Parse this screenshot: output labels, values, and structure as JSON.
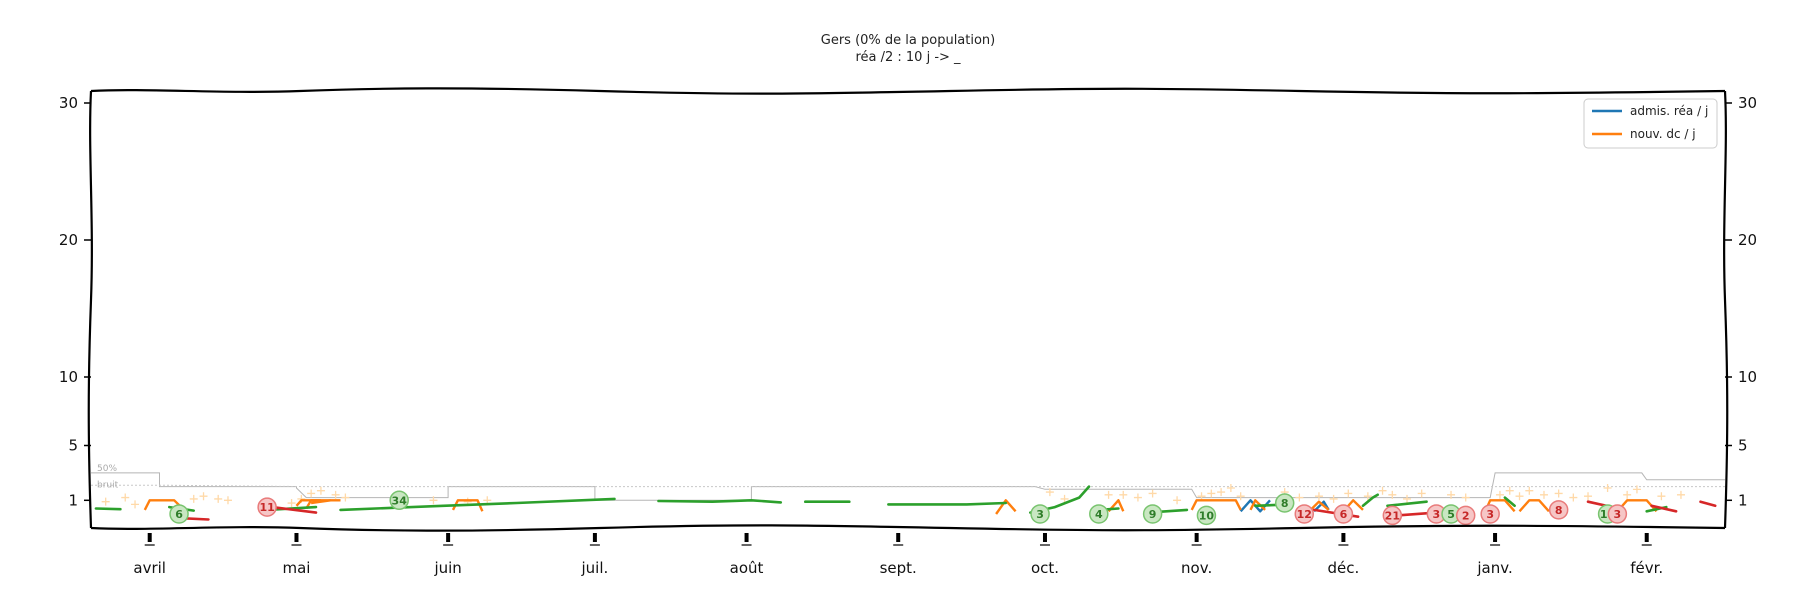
{
  "chart_data": {
    "type": "line",
    "title": "Gers (0% de la population)",
    "subtitle": "réa /2 : 10 j -> _",
    "yticks": [
      1,
      5,
      10,
      20,
      30
    ],
    "ylim": [
      0,
      32
    ],
    "x_range": [
      "2020-03-20",
      "2021-02-17"
    ],
    "months": [
      {
        "label": "avril",
        "date": "2020-04-01"
      },
      {
        "label": "mai",
        "date": "2020-05-01"
      },
      {
        "label": "juin",
        "date": "2020-06-01"
      },
      {
        "label": "juil.",
        "date": "2020-07-01"
      },
      {
        "label": "août",
        "date": "2020-08-01"
      },
      {
        "label": "sept.",
        "date": "2020-09-01"
      },
      {
        "label": "oct.",
        "date": "2020-10-01"
      },
      {
        "label": "nov.",
        "date": "2020-11-01"
      },
      {
        "label": "déc.",
        "date": "2020-12-01"
      },
      {
        "label": "janv.",
        "date": "2021-01-01"
      },
      {
        "label": "févr.",
        "date": "2021-02-01"
      }
    ],
    "legend": {
      "position": "top-right",
      "entries": [
        {
          "label": "admis. réa / j",
          "color": "#1f77b4"
        },
        {
          "label": "nouv. dc / j",
          "color": "#ff7f0e"
        }
      ]
    },
    "band_labels": [
      "50%",
      "bruit"
    ],
    "series": [
      {
        "name": "admis. réa / j",
        "color": "#1f77b4",
        "segments": [
          [
            [
              "2020-11-10",
              0.2
            ],
            [
              "2020-11-12",
              1
            ],
            [
              "2020-11-14",
              0.2
            ],
            [
              "2020-11-16",
              1
            ]
          ],
          [
            [
              "2020-11-25",
              0.2
            ],
            [
              "2020-11-27",
              0.9
            ],
            [
              "2020-11-28",
              0.3
            ]
          ]
        ]
      },
      {
        "name": "nouv. dc / j",
        "color": "#ff7f0e",
        "segments": [
          [
            [
              "2020-03-31",
              0.3
            ],
            [
              "2020-04-01",
              1
            ],
            [
              "2020-04-06",
              1
            ],
            [
              "2020-04-08",
              0.3
            ]
          ],
          [
            [
              "2020-05-01",
              0.6
            ],
            [
              "2020-05-02",
              1
            ],
            [
              "2020-05-06",
              1
            ]
          ],
          [
            [
              "2020-05-04",
              0.8
            ],
            [
              "2020-05-08",
              1
            ]
          ],
          [
            [
              "2020-05-03",
              0.4
            ],
            [
              "2020-05-04",
              1
            ],
            [
              "2020-05-10",
              1
            ]
          ],
          [
            [
              "2020-06-02",
              0.3
            ],
            [
              "2020-06-03",
              1
            ],
            [
              "2020-06-07",
              1
            ],
            [
              "2020-06-08",
              0.2
            ]
          ],
          [
            [
              "2020-09-21",
              0
            ],
            [
              "2020-09-23",
              1
            ],
            [
              "2020-09-25",
              0.2
            ]
          ],
          [
            [
              "2020-10-14",
              0.2
            ],
            [
              "2020-10-16",
              1
            ],
            [
              "2020-10-17",
              0.2
            ]
          ],
          [
            [
              "2020-10-31",
              0.3
            ],
            [
              "2020-11-01",
              1
            ],
            [
              "2020-11-09",
              1
            ],
            [
              "2020-11-10",
              0.3
            ]
          ],
          [
            [
              "2020-11-12",
              0.3
            ],
            [
              "2020-11-13",
              1
            ],
            [
              "2020-11-15",
              0.3
            ]
          ],
          [
            [
              "2020-11-24",
              0.2
            ],
            [
              "2020-11-26",
              0.9
            ],
            [
              "2020-11-28",
              0.3
            ]
          ],
          [
            [
              "2020-12-01",
              0.2
            ],
            [
              "2020-12-03",
              1
            ],
            [
              "2020-12-05",
              0.3
            ]
          ],
          [
            [
              "2020-12-30",
              0.2
            ],
            [
              "2020-12-31",
              1
            ],
            [
              "2021-01-03",
              1
            ],
            [
              "2021-01-05",
              0.2
            ]
          ],
          [
            [
              "2021-01-06",
              0.2
            ],
            [
              "2021-01-08",
              1
            ],
            [
              "2021-01-10",
              1
            ],
            [
              "2021-01-12",
              0.2
            ]
          ],
          [
            [
              "2021-01-26",
              0.2
            ],
            [
              "2021-01-28",
              1
            ],
            [
              "2021-02-01",
              1
            ],
            [
              "2021-02-03",
              0.2
            ]
          ]
        ]
      }
    ],
    "trend_segments": [
      {
        "color": "#2ca02c",
        "points": [
          [
            "2020-03-21",
            0.4
          ],
          [
            "2020-03-26",
            0.35
          ]
        ]
      },
      {
        "color": "#2ca02c",
        "points": [
          [
            "2020-04-05",
            0.5
          ],
          [
            "2020-04-10",
            0.25
          ]
        ]
      },
      {
        "color": "#2ca02c",
        "points": [
          [
            "2020-04-25",
            0.3
          ],
          [
            "2020-05-05",
            0.5
          ]
        ]
      },
      {
        "color": "#2ca02c",
        "points": [
          [
            "2020-05-10",
            0.3
          ],
          [
            "2020-05-31",
            0.6
          ],
          [
            "2020-06-15",
            0.8
          ],
          [
            "2020-07-05",
            1.1
          ]
        ]
      },
      {
        "color": "#2ca02c",
        "points": [
          [
            "2020-07-14",
            0.95
          ],
          [
            "2020-07-25",
            0.9
          ],
          [
            "2020-08-02",
            1
          ],
          [
            "2020-08-08",
            0.85
          ]
        ]
      },
      {
        "color": "#2ca02c",
        "points": [
          [
            "2020-08-13",
            0.9
          ],
          [
            "2020-08-22",
            0.9
          ]
        ]
      },
      {
        "color": "#2ca02c",
        "points": [
          [
            "2020-08-30",
            0.7
          ],
          [
            "2020-09-15",
            0.7
          ],
          [
            "2020-09-23",
            0.8
          ]
        ]
      },
      {
        "color": "#2ca02c",
        "points": [
          [
            "2020-09-28",
            0.1
          ],
          [
            "2020-10-03",
            0.5
          ],
          [
            "2020-10-08",
            1.2
          ],
          [
            "2020-10-10",
            2
          ]
        ]
      },
      {
        "color": "#2ca02c",
        "points": [
          [
            "2020-10-12",
            0.3
          ],
          [
            "2020-10-16",
            0.4
          ]
        ]
      },
      {
        "color": "#2ca02c",
        "points": [
          [
            "2020-10-22",
            0.1
          ],
          [
            "2020-10-30",
            0.3
          ]
        ]
      },
      {
        "color": "#2ca02c",
        "points": [
          [
            "2020-11-13",
            0.6
          ],
          [
            "2020-11-20",
            0.7
          ]
        ]
      },
      {
        "color": "#2ca02c",
        "points": [
          [
            "2020-12-05",
            0.6
          ],
          [
            "2020-12-07",
            1.2
          ],
          [
            "2020-12-08",
            1.4
          ]
        ]
      },
      {
        "color": "#2ca02c",
        "points": [
          [
            "2020-12-10",
            0.6
          ],
          [
            "2020-12-18",
            0.9
          ]
        ]
      },
      {
        "color": "#2ca02c",
        "points": [
          [
            "2021-01-03",
            1.2
          ],
          [
            "2021-01-05",
            0.6
          ]
        ]
      },
      {
        "color": "#2ca02c",
        "points": [
          [
            "2021-02-01",
            0.2
          ],
          [
            "2021-02-05",
            0.5
          ]
        ]
      },
      {
        "color": "#d62728",
        "points": [
          [
            "2020-04-07",
            -0.3
          ],
          [
            "2020-04-13",
            -0.4
          ]
        ]
      },
      {
        "color": "#d62728",
        "points": [
          [
            "2020-04-26",
            0.5
          ],
          [
            "2020-05-05",
            0.1
          ]
        ]
      },
      {
        "color": "#d62728",
        "points": [
          [
            "2020-11-25",
            0.3
          ],
          [
            "2020-12-04",
            -0.2
          ]
        ]
      },
      {
        "color": "#d62728",
        "points": [
          [
            "2020-12-12",
            -0.1
          ],
          [
            "2020-12-20",
            0.1
          ]
        ]
      },
      {
        "color": "#d62728",
        "points": [
          [
            "2021-01-20",
            0.9
          ],
          [
            "2021-01-25",
            0.5
          ]
        ]
      },
      {
        "color": "#d62728",
        "points": [
          [
            "2021-02-02",
            0.6
          ],
          [
            "2021-02-07",
            0.2
          ]
        ]
      },
      {
        "color": "#d62728",
        "points": [
          [
            "2021-02-12",
            0.9
          ],
          [
            "2021-02-15",
            0.6
          ]
        ]
      }
    ],
    "threshold_line": [
      [
        "2020-03-20",
        3
      ],
      [
        "2020-04-03",
        3
      ],
      [
        "2020-04-03",
        2
      ],
      [
        "2020-05-01",
        2
      ],
      [
        "2020-05-01",
        1.9
      ],
      [
        "2020-05-03",
        1.2
      ],
      [
        "2020-06-01",
        1.2
      ],
      [
        "2020-06-01",
        2
      ],
      [
        "2020-06-30",
        2
      ],
      [
        "2020-07-01",
        2
      ],
      [
        "2020-07-01",
        1
      ],
      [
        "2020-08-02",
        1
      ],
      [
        "2020-08-02",
        2
      ],
      [
        "2020-09-29",
        2
      ],
      [
        "2020-10-01",
        1.8
      ],
      [
        "2020-10-31",
        1.8
      ],
      [
        "2020-11-01",
        1.2
      ],
      [
        "2020-11-30",
        1.2
      ],
      [
        "2020-12-01",
        1.2
      ],
      [
        "2020-12-31",
        1.2
      ],
      [
        "2021-01-01",
        3
      ],
      [
        "2021-01-31",
        3
      ],
      [
        "2021-02-01",
        2.5
      ],
      [
        "2021-02-17",
        2.5
      ]
    ],
    "noise_line": [
      [
        "2020-03-20",
        2.1
      ],
      [
        "2020-04-03",
        2.1
      ],
      [
        "2020-05-03",
        2
      ],
      [
        "2020-06-01",
        2
      ],
      [
        "2020-07-01",
        2
      ],
      [
        "2020-08-02",
        2
      ],
      [
        "2020-09-29",
        2
      ],
      [
        "2020-10-31",
        2
      ],
      [
        "2020-11-30",
        2
      ],
      [
        "2020-12-31",
        2
      ],
      [
        "2021-01-31",
        2
      ],
      [
        "2021-02-17",
        2
      ]
    ],
    "scatter_points": [
      [
        "2020-03-23",
        0.9
      ],
      [
        "2020-03-27",
        1.2
      ],
      [
        "2020-03-29",
        0.7
      ],
      [
        "2020-04-10",
        1.1
      ],
      [
        "2020-04-12",
        1.3
      ],
      [
        "2020-04-15",
        1.1
      ],
      [
        "2020-04-17",
        1.0
      ],
      [
        "2020-04-30",
        0.8
      ],
      [
        "2020-05-02",
        1.1
      ],
      [
        "2020-05-04",
        1.5
      ],
      [
        "2020-05-06",
        1.7
      ],
      [
        "2020-05-09",
        1.4
      ],
      [
        "2020-05-11",
        1.2
      ],
      [
        "2020-06-05",
        0.9
      ],
      [
        "2020-06-09",
        1.0
      ],
      [
        "2020-05-29",
        1.0
      ],
      [
        "2020-10-02",
        1.6
      ],
      [
        "2020-10-05",
        1.1
      ],
      [
        "2020-10-14",
        1.4
      ],
      [
        "2020-10-17",
        1.4
      ],
      [
        "2020-10-20",
        1.2
      ],
      [
        "2020-10-23",
        1.5
      ],
      [
        "2020-10-28",
        1.0
      ],
      [
        "2020-11-02",
        1.3
      ],
      [
        "2020-11-04",
        1.5
      ],
      [
        "2020-11-06",
        1.6
      ],
      [
        "2020-11-08",
        1.9
      ],
      [
        "2020-11-10",
        1.3
      ],
      [
        "2020-11-19",
        1.6
      ],
      [
        "2020-11-22",
        1.2
      ],
      [
        "2020-11-26",
        1.3
      ],
      [
        "2020-11-29",
        1.1
      ],
      [
        "2020-12-02",
        1.5
      ],
      [
        "2020-12-06",
        1.3
      ],
      [
        "2020-12-09",
        1.7
      ],
      [
        "2020-12-11",
        1.4
      ],
      [
        "2020-12-14",
        1.1
      ],
      [
        "2020-12-17",
        1.5
      ],
      [
        "2020-12-23",
        1.4
      ],
      [
        "2020-12-26",
        1.2
      ],
      [
        "2021-01-02",
        1.4
      ],
      [
        "2021-01-04",
        1.7
      ],
      [
        "2021-01-06",
        1.3
      ],
      [
        "2021-01-08",
        1.7
      ],
      [
        "2021-01-11",
        1.4
      ],
      [
        "2021-01-14",
        1.5
      ],
      [
        "2021-01-17",
        1.2
      ],
      [
        "2021-01-20",
        1.3
      ],
      [
        "2021-01-24",
        1.9
      ],
      [
        "2021-01-28",
        1.4
      ],
      [
        "2021-01-30",
        1.8
      ],
      [
        "2021-02-04",
        1.3
      ],
      [
        "2021-02-08",
        1.4
      ]
    ],
    "annotations": [
      {
        "label": "6",
        "date": "2020-04-07",
        "y": 0,
        "color": "green"
      },
      {
        "label": "11",
        "date": "2020-04-25",
        "y": 0.5,
        "color": "red"
      },
      {
        "label": "34",
        "date": "2020-05-22",
        "y": 1.0,
        "color": "green"
      },
      {
        "label": "3",
        "date": "2020-09-30",
        "y": 0,
        "color": "green"
      },
      {
        "label": "4",
        "date": "2020-10-12",
        "y": 0,
        "color": "green"
      },
      {
        "label": "9",
        "date": "2020-10-23",
        "y": 0,
        "color": "green"
      },
      {
        "label": "10",
        "date": "2020-11-03",
        "y": -0.1,
        "color": "green"
      },
      {
        "label": "8",
        "date": "2020-11-19",
        "y": 0.8,
        "color": "green"
      },
      {
        "label": "12",
        "date": "2020-11-23",
        "y": 0,
        "color": "red"
      },
      {
        "label": "6",
        "date": "2020-12-01",
        "y": 0,
        "color": "red"
      },
      {
        "label": "21",
        "date": "2020-12-11",
        "y": -0.1,
        "color": "red"
      },
      {
        "label": "3",
        "date": "2020-12-20",
        "y": 0,
        "color": "red"
      },
      {
        "label": "5",
        "date": "2020-12-23",
        "y": 0,
        "color": "green"
      },
      {
        "label": "2",
        "date": "2020-12-26",
        "y": -0.1,
        "color": "red"
      },
      {
        "label": "3",
        "date": "2020-12-31",
        "y": 0,
        "color": "red"
      },
      {
        "label": "8",
        "date": "2021-01-14",
        "y": 0.3,
        "color": "red"
      },
      {
        "label": "10",
        "date": "2021-01-24",
        "y": 0,
        "color": "green"
      },
      {
        "label": "3",
        "date": "2021-01-26",
        "y": 0,
        "color": "red"
      }
    ]
  }
}
